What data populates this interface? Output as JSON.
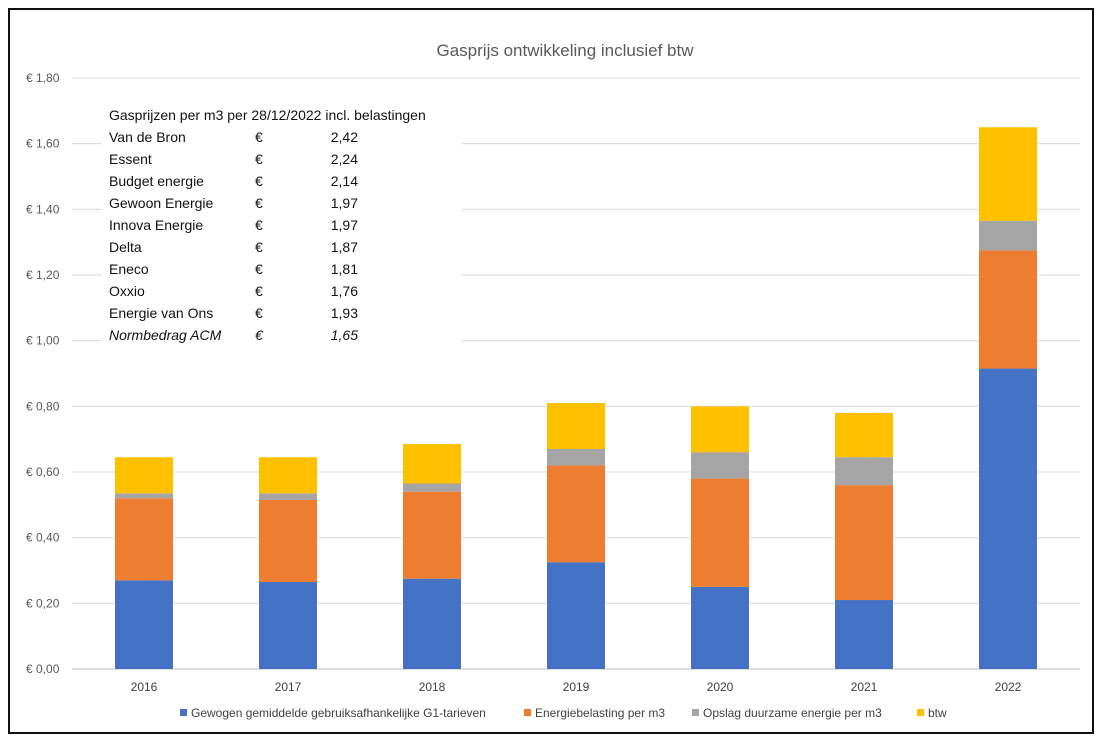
{
  "chart_data": {
    "type": "bar",
    "stacked": true,
    "title": "Gasprijs ontwikkeling inclusief btw",
    "categories": [
      "2016",
      "2017",
      "2018",
      "2019",
      "2020",
      "2021",
      "2022"
    ],
    "ylim": [
      0,
      1.8
    ],
    "yticks": [
      "€ 0,00",
      "€ 0,20",
      "€ 0,40",
      "€ 0,60",
      "€ 0,80",
      "€ 1,00",
      "€ 1,20",
      "€ 1,40",
      "€ 1,60",
      "€ 1,80"
    ],
    "grid": true,
    "legend_position": "bottom",
    "series": [
      {
        "name": "Gewogen gemiddelde gebruiksafhankelijke G1-tarieven",
        "color": "#4472C4",
        "values": [
          0.27,
          0.265,
          0.275,
          0.325,
          0.25,
          0.21,
          0.915
        ]
      },
      {
        "name": "Energiebelasting per m3",
        "color": "#ED7D31",
        "values": [
          0.25,
          0.25,
          0.265,
          0.295,
          0.33,
          0.35,
          0.36
        ]
      },
      {
        "name": "Opslag duurzame energie per m3",
        "color": "#A5A5A5",
        "values": [
          0.015,
          0.02,
          0.025,
          0.05,
          0.08,
          0.085,
          0.09
        ]
      },
      {
        "name": "btw",
        "color": "#FFC000",
        "values": [
          0.11,
          0.11,
          0.12,
          0.14,
          0.14,
          0.135,
          0.285
        ]
      }
    ],
    "annotation_table": {
      "header": "Gasprijzen per m3 per 28/12/2022 incl. belastingen",
      "currency": "€",
      "rows": [
        {
          "name": "Van de Bron",
          "value": "2,42"
        },
        {
          "name": "Essent",
          "value": "2,24"
        },
        {
          "name": "Budget energie",
          "value": "2,14"
        },
        {
          "name": "Gewoon Energie",
          "value": "1,97"
        },
        {
          "name": "Innova Energie",
          "value": "1,97"
        },
        {
          "name": "Delta",
          "value": "1,87"
        },
        {
          "name": "Eneco",
          "value": "1,81"
        },
        {
          "name": "Oxxio",
          "value": "1,76"
        },
        {
          "name": "Energie van Ons",
          "value": "1,93"
        },
        {
          "name": "Normbedrag ACM",
          "value": "1,65",
          "italic": true
        }
      ]
    }
  }
}
